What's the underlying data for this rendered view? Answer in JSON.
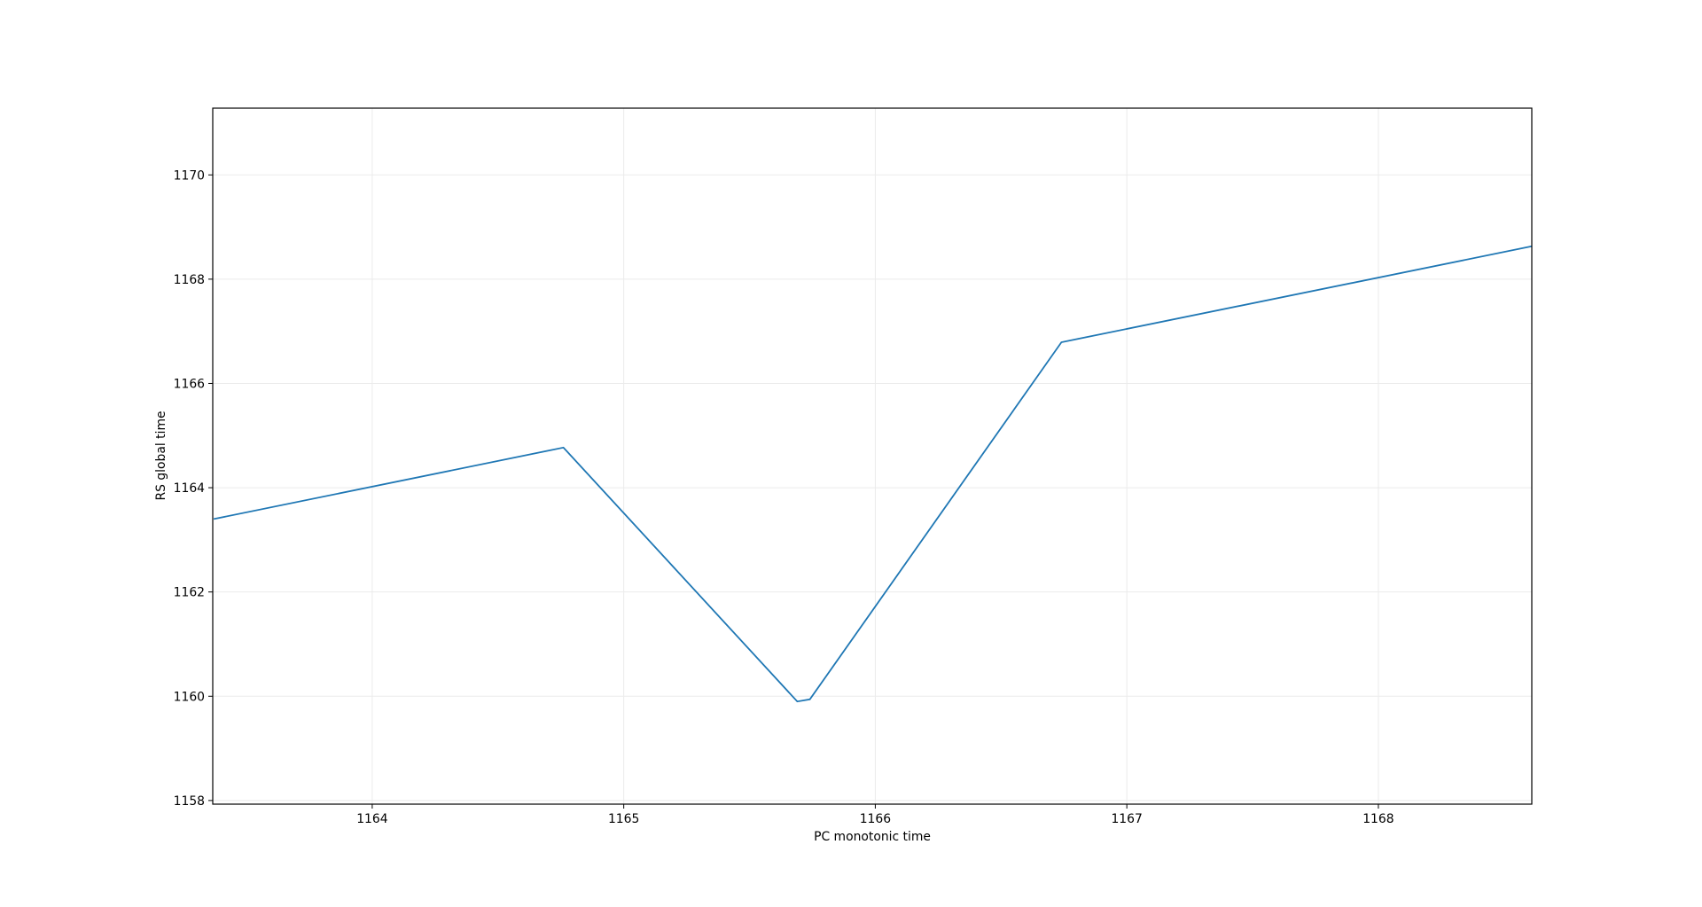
{
  "chart_data": {
    "type": "line",
    "title": "",
    "xlabel": "PC monotonic time",
    "ylabel": "RS global time",
    "xlim": [
      1163.366,
      1168.61
    ],
    "ylim": [
      1157.93,
      1171.28
    ],
    "xticks": [
      1164,
      1165,
      1166,
      1167,
      1168
    ],
    "yticks": [
      1158,
      1160,
      1162,
      1164,
      1166,
      1168,
      1170
    ],
    "grid": true,
    "line_color": "#1f77b4",
    "series": [
      {
        "x": [
          1163.37,
          1164.76,
          1165.69,
          1165.74,
          1166.74,
          1168.61
        ],
        "y": [
          1163.4,
          1164.77,
          1159.9,
          1159.94,
          1166.79,
          1168.63
        ]
      }
    ]
  }
}
